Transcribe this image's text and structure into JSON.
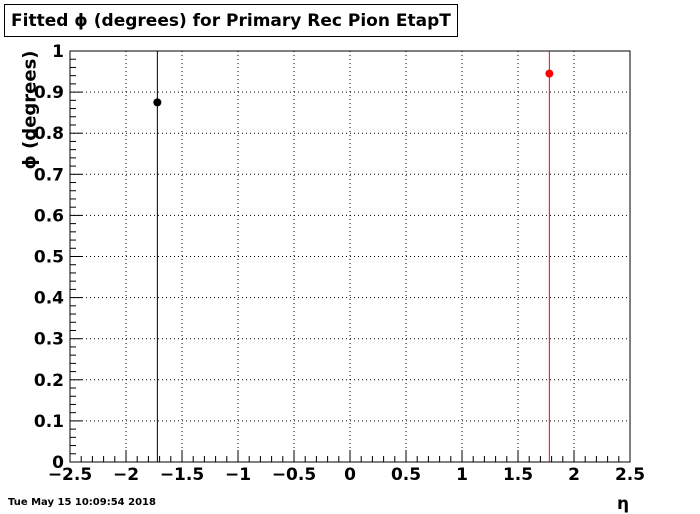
{
  "chart_data": {
    "type": "scatter",
    "title": "Fitted ϕ (degrees) for Primary Rec Pion EtapT",
    "xlabel": "η",
    "ylabel": "ϕ (degrees)",
    "xlim": [
      -2.5,
      2.5
    ],
    "ylim": [
      0,
      1
    ],
    "x_ticks": [
      "−2.5",
      "−2",
      "−1.5",
      "−1",
      "−0.5",
      "0",
      "0.5",
      "1",
      "1.5",
      "2",
      "2.5"
    ],
    "y_ticks": [
      "0",
      "0.1",
      "0.2",
      "0.3",
      "0.4",
      "0.5",
      "0.6",
      "0.7",
      "0.8",
      "0.9",
      "1"
    ],
    "grid": true,
    "series": [
      {
        "color": "#000000",
        "points": [
          {
            "x": -1.72,
            "y": 0.875,
            "yerr_low": 0.875,
            "yerr_high": 0.125
          }
        ]
      },
      {
        "color": "#ff0000",
        "points": [
          {
            "x": 1.78,
            "y": 0.945,
            "yerr_low": 0.945,
            "yerr_high": 0.055
          }
        ]
      }
    ]
  },
  "timestamp": "Tue May 15 10:09:54 2018"
}
